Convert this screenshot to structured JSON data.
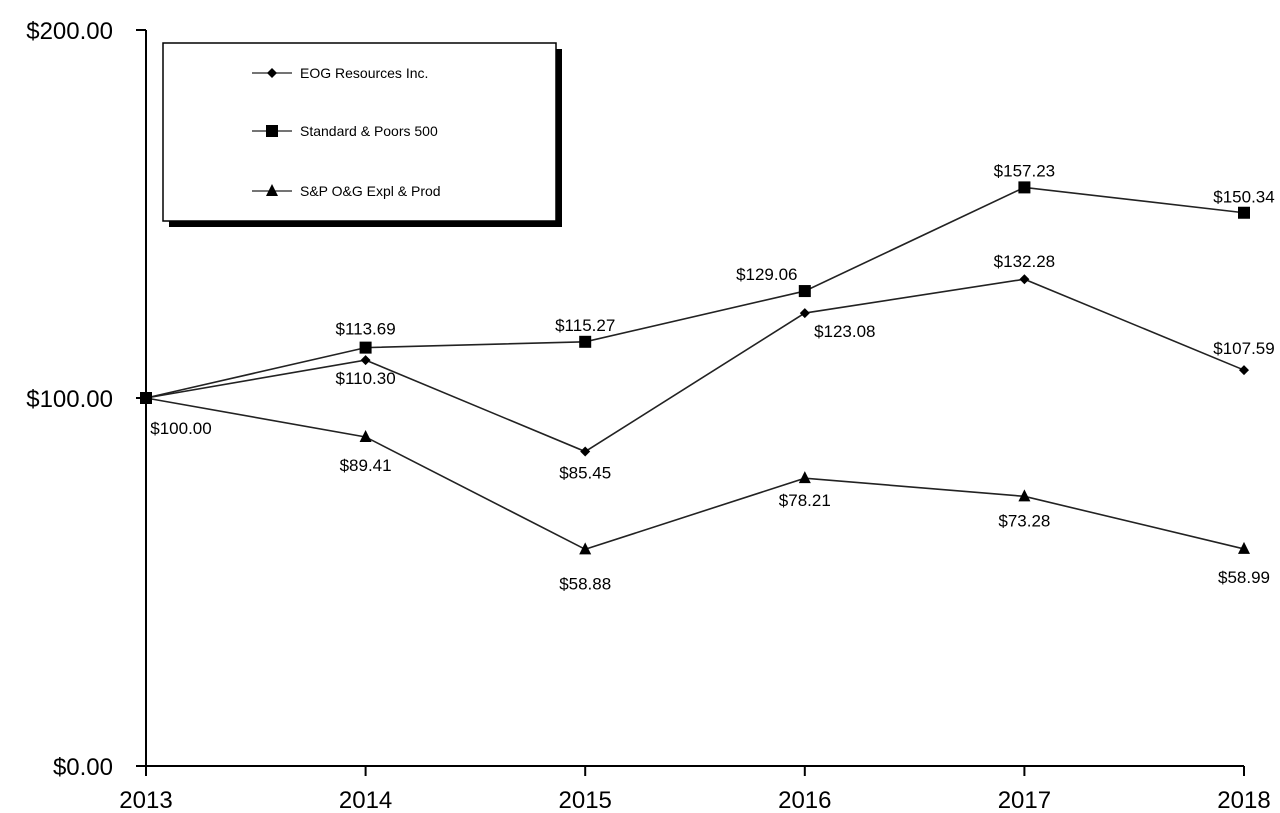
{
  "chart_data": {
    "type": "line",
    "title": "",
    "xlabel": "",
    "ylabel": "",
    "categories": [
      "2013",
      "2014",
      "2015",
      "2016",
      "2017",
      "2018"
    ],
    "ylim": [
      0,
      200
    ],
    "y_ticks": [
      "$0.00",
      "$100.00",
      "$200.00"
    ],
    "y_tick_values": [
      0,
      100,
      200
    ],
    "grid": false,
    "legend_position": "top-left",
    "series": [
      {
        "name": "EOG Resources Inc.",
        "marker": "diamond",
        "values": [
          100.0,
          110.3,
          85.45,
          123.08,
          132.28,
          107.59
        ],
        "labels": [
          "$100.00",
          "$110.30",
          "$85.45",
          "$123.08",
          "$132.28",
          "$107.59"
        ]
      },
      {
        "name": "Standard & Poors 500",
        "marker": "square",
        "values": [
          100.0,
          113.69,
          115.27,
          129.06,
          157.23,
          150.34
        ],
        "labels": [
          "",
          "$113.69",
          "$115.27",
          "$129.06",
          "$157.23",
          "$150.34"
        ]
      },
      {
        "name": "S&P O&G Expl & Prod",
        "marker": "triangle",
        "values": [
          100.0,
          89.41,
          58.88,
          78.21,
          73.28,
          58.99
        ],
        "labels": [
          "",
          "$89.41",
          "$58.88",
          "$78.21",
          "$73.28",
          "$58.99"
        ]
      }
    ],
    "colors": {
      "line": "#222222",
      "marker": "#000000"
    }
  }
}
